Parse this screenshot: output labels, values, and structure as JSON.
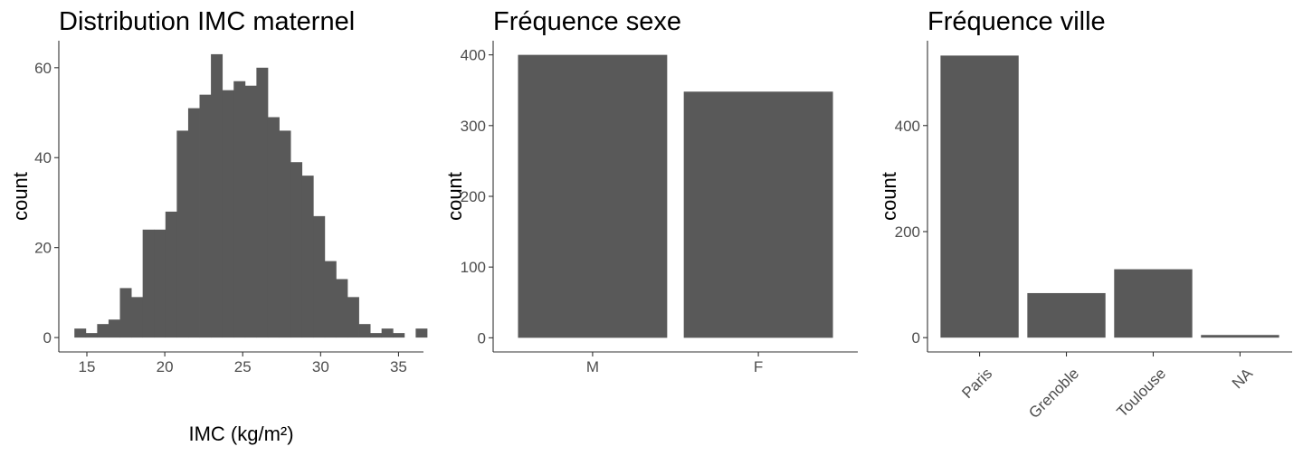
{
  "chart_data": [
    {
      "type": "bar",
      "subtype": "histogram",
      "title": "Distribution IMC maternel",
      "xlabel": "IMC (kg/m²)",
      "ylabel": "count",
      "bin_width": 0.73,
      "bin_start": 14.2,
      "counts": [
        2,
        1,
        3,
        4,
        11,
        9,
        24,
        24,
        28,
        46,
        51,
        54,
        63,
        55,
        57,
        56,
        60,
        49,
        46,
        39,
        36,
        27,
        17,
        13,
        9,
        3,
        1,
        2,
        1,
        0,
        2
      ],
      "xlim": [
        13.2,
        36.6
      ],
      "ylim": [
        -3.2,
        66
      ],
      "xticks": [
        15,
        20,
        25,
        30,
        35
      ],
      "yticks": [
        0,
        20,
        40,
        60
      ],
      "grid": false,
      "color": "#595959"
    },
    {
      "type": "bar",
      "title": "Fréquence sexe",
      "xlabel": "",
      "ylabel": "count",
      "categories": [
        "M",
        "F"
      ],
      "values": [
        400,
        348
      ],
      "ylim": [
        -20,
        420
      ],
      "yticks": [
        0,
        100,
        200,
        300,
        400
      ],
      "grid": false,
      "color": "#595959"
    },
    {
      "type": "bar",
      "title": "Fréquence ville",
      "xlabel": "",
      "ylabel": "count",
      "categories": [
        "Paris",
        "Grenoble",
        "Toulouse",
        "NA"
      ],
      "values": [
        532,
        84,
        129,
        5
      ],
      "ylim": [
        -27,
        560
      ],
      "yticks": [
        0,
        200,
        400
      ],
      "grid": false,
      "color": "#595959"
    }
  ]
}
